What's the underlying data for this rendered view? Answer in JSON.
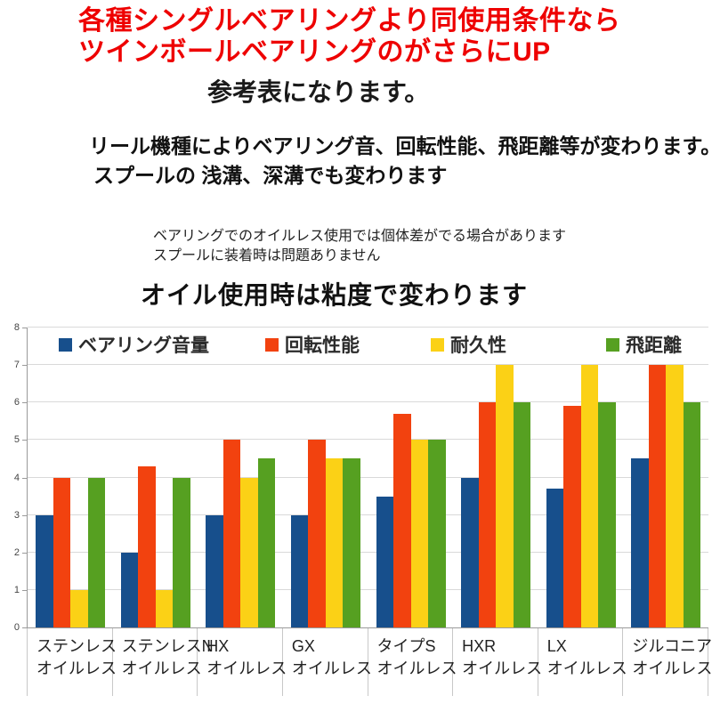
{
  "header": {
    "red_line1": "各種シングルベアリングより同使用条件なら",
    "red_line2": "ツインボールベアリングのがさらにUP",
    "subtitle": "参考表になります。",
    "note1_line1": "リール機種によりベアリング音、回転性能、飛距離等が変わります。",
    "note1_line2": "スプールの 浅溝、深溝でも変わります",
    "note2_line1": "ベアリングでのオイルレス使用では個体差がでる場合があります",
    "note2_line2": "スプールに装着時は問題ありません",
    "chart_title": "オイル使用時は粘度で変わります"
  },
  "colors": {
    "headline_red": "#ee0000",
    "axis_gray": "#9a9a9a",
    "grid_gray": "#d9d9d9"
  },
  "chart_data": {
    "type": "bar",
    "title": "オイル使用時は粘度で変わります",
    "categories": [
      {
        "line1": "ステンレス",
        "line2": "オイルレス"
      },
      {
        "line1": "ステンレスN",
        "line2": "オイルレス"
      },
      {
        "line1": "HX",
        "line2": "オイルレス"
      },
      {
        "line1": "GX",
        "line2": "オイルレス"
      },
      {
        "line1": "タイプS",
        "line2": "オイルレス"
      },
      {
        "line1": "HXR",
        "line2": "オイルレス"
      },
      {
        "line1": "LX",
        "line2": "オイルレス"
      },
      {
        "line1": "ジルコニア",
        "line2": "オイルレス"
      }
    ],
    "series": [
      {
        "name": "ベアリング音量",
        "color": "#174f8c",
        "values": [
          3,
          2,
          3,
          3,
          3.5,
          4,
          3.7,
          4.5
        ]
      },
      {
        "name": "回転性能",
        "color": "#f2420f",
        "values": [
          4,
          4.3,
          5,
          5,
          5.7,
          6,
          5.9,
          7
        ]
      },
      {
        "name": "耐久性",
        "color": "#fbd116",
        "values": [
          1,
          1,
          4,
          4.5,
          5,
          7,
          7,
          7
        ]
      },
      {
        "name": "飛距離",
        "color": "#56a021",
        "values": [
          4,
          4,
          4.5,
          4.5,
          5,
          6,
          6,
          6
        ]
      }
    ],
    "xlabel": "",
    "ylabel": "",
    "ylim": [
      0,
      8
    ],
    "yticks": [
      0,
      1,
      2,
      3,
      4,
      5,
      6,
      7,
      8
    ],
    "grid": true,
    "legend_position": "top-inside"
  }
}
